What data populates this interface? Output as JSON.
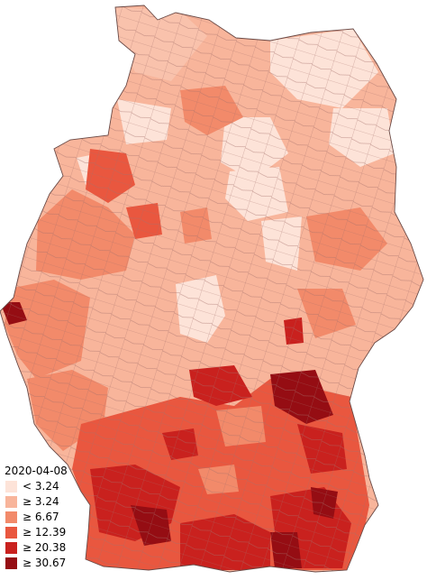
{
  "map": {
    "legend": {
      "date": "2020-04-08",
      "classes": [
        {
          "label": "< 3.24",
          "color": "#fde3d8"
        },
        {
          "label": "≥ 3.24",
          "color": "#f8b59b"
        },
        {
          "label": "≥ 6.67",
          "color": "#f28a6a"
        },
        {
          "label": "≥ 12.39",
          "color": "#e9573f"
        },
        {
          "label": "≥ 20.38",
          "color": "#c9211e"
        },
        {
          "label": "≥ 30.67",
          "color": "#950d13"
        }
      ]
    }
  }
}
